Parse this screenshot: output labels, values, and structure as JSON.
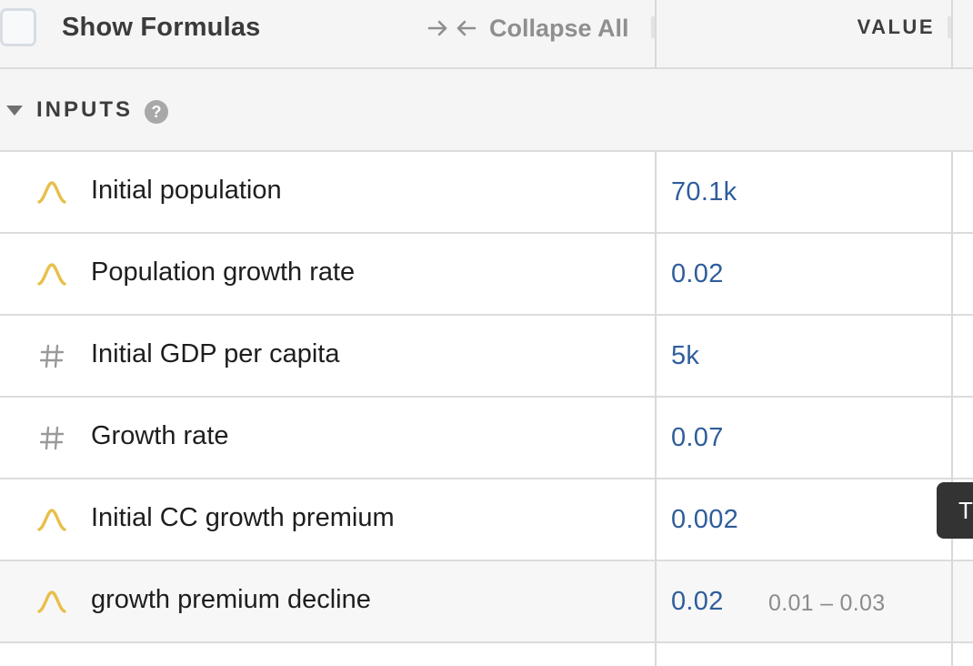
{
  "header": {
    "show_formulas_label": "Show Formulas",
    "show_formulas_checked": false,
    "collapse_all_label": "Collapse All",
    "value_column_label": "VALUE"
  },
  "section": {
    "title": "INPUTS",
    "help_glyph": "?",
    "expanded": true
  },
  "rows": [
    {
      "name": "Initial population",
      "value": "70.1k",
      "range": "",
      "icon": "distribution-icon"
    },
    {
      "name": "Population growth rate",
      "value": "0.02",
      "range": "",
      "icon": "distribution-icon"
    },
    {
      "name": "Initial GDP per capita",
      "value": "5k",
      "range": "",
      "icon": "hash-icon"
    },
    {
      "name": "Growth rate",
      "value": "0.07",
      "range": "",
      "icon": "hash-icon"
    },
    {
      "name": "Initial CC growth premium",
      "value": "0.002",
      "range": "",
      "icon": "distribution-icon"
    },
    {
      "name": "growth premium decline",
      "value": "0.02",
      "range": "0.01 – 0.03",
      "icon": "distribution-icon"
    }
  ],
  "tooltip": {
    "text": "T"
  },
  "colors": {
    "value_blue": "#2f5d9b",
    "distribution_icon": "#e8bf4a",
    "hash_icon": "#9a9a9a",
    "header_bg": "#f5f5f5",
    "divider": "#dcdcdc"
  }
}
